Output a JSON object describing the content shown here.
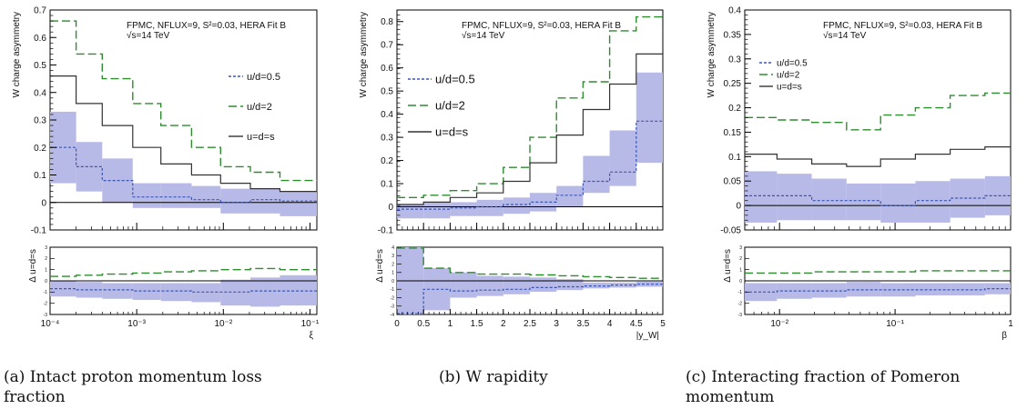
{
  "captions": {
    "a": "(a) Intact proton momentum loss fraction",
    "b": "(b) W rapidity",
    "c": "(c) Interacting fraction of Pomeron momentum"
  },
  "colors": {
    "band": "#b7b9e6",
    "green": "#2e8b2e",
    "blue": "#3a57b6",
    "black": "#333333"
  },
  "chart_data": [
    {
      "type": "line",
      "id": "a",
      "ylabel": "W charge asymmetry",
      "ratio_ylabel": "Δ u=d=s",
      "xlabel": "ξ",
      "xscale": "log",
      "xlim": [
        0.0001,
        0.12
      ],
      "ylim": [
        -0.1,
        0.7
      ],
      "ratio_ylim": [
        -3,
        3
      ],
      "x_ticks": [
        "10⁻⁴",
        "10⁻³",
        "10⁻²",
        "10⁻¹"
      ],
      "y_ticks": [
        "-0.1",
        "0",
        "0.1",
        "0.2",
        "0.3",
        "0.4",
        "0.5",
        "0.6",
        "0.7"
      ],
      "ratio_ticks": [
        "-3",
        "-2",
        "-1",
        "0",
        "1",
        "2",
        "3"
      ],
      "annotation": [
        "FPMC, NFLUX=9, S²=0.03, HERA Fit B",
        "√s=14 TeV"
      ],
      "legend": [
        "u/d=0.5",
        "u/d=2",
        "u=d=s"
      ],
      "legend_position": "right",
      "bin_edges": [
        0.0001,
        0.0002,
        0.0004,
        0.0009,
        0.0019,
        0.0043,
        0.0093,
        0.0205,
        0.045,
        0.12
      ],
      "series": [
        {
          "name": "u/d=0.5",
          "style": "dashed-blue",
          "values": [
            0.2,
            0.13,
            0.08,
            0.02,
            0.02,
            0.01,
            0.0,
            0.01,
            0.005
          ],
          "band_low": [
            0.07,
            0.04,
            0.0,
            -0.02,
            -0.02,
            -0.02,
            -0.04,
            -0.04,
            -0.05
          ],
          "band_high": [
            0.33,
            0.22,
            0.16,
            0.07,
            0.07,
            0.06,
            0.05,
            0.05,
            0.04
          ]
        },
        {
          "name": "u/d=2",
          "style": "dashed-green",
          "values": [
            0.66,
            0.54,
            0.45,
            0.36,
            0.28,
            0.2,
            0.13,
            0.11,
            0.08
          ]
        },
        {
          "name": "u=d=s",
          "style": "solid-black",
          "values": [
            0.46,
            0.36,
            0.28,
            0.2,
            0.14,
            0.1,
            0.07,
            0.05,
            0.04
          ]
        }
      ],
      "ratio_series": [
        {
          "name": "u/d=0.5",
          "values": [
            -0.7,
            -0.8,
            -0.8,
            -0.9,
            -0.9,
            -1.0,
            -1.0,
            -0.9,
            -0.9
          ],
          "band_low": [
            -1.4,
            -1.5,
            -1.6,
            -1.7,
            -1.8,
            -1.9,
            -2.2,
            -2.3,
            -2.2
          ],
          "band_high": [
            0.0,
            -0.1,
            -0.2,
            -0.2,
            -0.2,
            -0.2,
            0.1,
            0.3,
            0.5
          ]
        },
        {
          "name": "u/d=2",
          "values": [
            0.4,
            0.5,
            0.6,
            0.7,
            0.8,
            0.9,
            1.0,
            1.1,
            1.0
          ]
        }
      ]
    },
    {
      "type": "line",
      "id": "b",
      "ylabel": "W charge asymmetry",
      "ratio_ylabel": "Δ u=d=s",
      "xlabel": "|y_W|",
      "xscale": "linear",
      "xlim": [
        0,
        5
      ],
      "ylim": [
        -0.1,
        0.85
      ],
      "ratio_ylim": [
        -4,
        4
      ],
      "x_ticks": [
        "0",
        "0.5",
        "1",
        "1.5",
        "2",
        "2.5",
        "3",
        "3.5",
        "4",
        "4.5",
        "5"
      ],
      "y_ticks": [
        "-0.1",
        "0",
        "0.1",
        "0.2",
        "0.3",
        "0.4",
        "0.5",
        "0.6",
        "0.7",
        "0.8"
      ],
      "ratio_ticks": [
        "-4",
        "-3",
        "-2",
        "-1",
        "0",
        "1",
        "2",
        "3",
        "4"
      ],
      "annotation": [
        "FPMC, NFLUX=9, S²=0.03, HERA Fit B",
        "√s=14 TeV"
      ],
      "legend": [
        "u/d=0.5",
        "u/d=2",
        "u=d=s"
      ],
      "legend_position": "left",
      "bin_edges": [
        0,
        0.5,
        1,
        1.5,
        2,
        2.5,
        3,
        3.5,
        4,
        4.5,
        5
      ],
      "series": [
        {
          "name": "u/d=0.5",
          "style": "dashed-blue",
          "values": [
            -0.01,
            -0.01,
            -0.005,
            0.0,
            0.01,
            0.02,
            0.05,
            0.11,
            0.15,
            0.37
          ],
          "band_low": [
            -0.05,
            -0.05,
            -0.04,
            -0.04,
            -0.03,
            -0.02,
            0.0,
            0.06,
            0.09,
            0.19
          ],
          "band_high": [
            0.01,
            0.02,
            0.02,
            0.03,
            0.04,
            0.06,
            0.09,
            0.22,
            0.33,
            0.58
          ]
        },
        {
          "name": "u/d=2",
          "style": "dashed-green",
          "values": [
            0.04,
            0.05,
            0.07,
            0.1,
            0.17,
            0.3,
            0.47,
            0.54,
            0.76,
            0.82
          ]
        },
        {
          "name": "u=d=s",
          "style": "solid-black",
          "values": [
            0.01,
            0.02,
            0.04,
            0.06,
            0.11,
            0.19,
            0.31,
            0.42,
            0.53,
            0.66
          ]
        }
      ],
      "ratio_series": [
        {
          "name": "u/d=0.5",
          "values": [
            -3.9,
            -1.0,
            -1.2,
            -1.1,
            -1.0,
            -0.8,
            -0.7,
            -0.6,
            -0.5,
            -0.4
          ],
          "band_low": [
            -4.0,
            -3.5,
            -2.0,
            -1.8,
            -1.6,
            -1.3,
            -1.1,
            -0.9,
            -0.8,
            -0.7
          ],
          "band_high": [
            4.0,
            1.5,
            1.0,
            0.6,
            0.5,
            0.4,
            0.2,
            -0.2,
            -0.2,
            -0.1
          ]
        },
        {
          "name": "u/d=2",
          "values": [
            3.9,
            1.5,
            1.0,
            0.8,
            0.8,
            0.7,
            0.6,
            0.5,
            0.4,
            0.3
          ]
        }
      ]
    },
    {
      "type": "line",
      "id": "c",
      "ylabel": "W charge asymmetry",
      "ratio_ylabel": "Δ u=d=s",
      "xlabel": "β",
      "xscale": "log",
      "xlim": [
        0.005,
        1
      ],
      "ylim": [
        -0.05,
        0.4
      ],
      "ratio_ylim": [
        -3,
        3
      ],
      "x_ticks": [
        "10⁻²",
        "10⁻¹",
        "1"
      ],
      "y_ticks": [
        "-0.05",
        "0",
        "0.05",
        "0.1",
        "0.15",
        "0.2",
        "0.25",
        "0.3",
        "0.35",
        "0.4"
      ],
      "ratio_ticks": [
        "-3",
        "-2",
        "-1",
        "0",
        "1",
        "2",
        "3"
      ],
      "annotation": [
        "FPMC, NFLUX=9, S²=0.03, HERA Fit B",
        "√s=14 TeV"
      ],
      "legend": [
        "u/d=0.5",
        "u/d=2",
        "u=d=s"
      ],
      "legend_position": "top-left",
      "bin_edges": [
        0.005,
        0.0095,
        0.019,
        0.038,
        0.075,
        0.15,
        0.3,
        0.6,
        1
      ],
      "series": [
        {
          "name": "u/d=0.5",
          "style": "dashed-blue",
          "values": [
            0.02,
            0.02,
            0.01,
            0.01,
            0.0,
            0.01,
            0.015,
            0.02
          ],
          "band_low": [
            -0.035,
            -0.03,
            -0.03,
            -0.03,
            -0.035,
            -0.035,
            -0.025,
            -0.02
          ],
          "band_high": [
            0.07,
            0.065,
            0.055,
            0.045,
            0.045,
            0.05,
            0.055,
            0.06
          ]
        },
        {
          "name": "u/d=2",
          "style": "dashed-green",
          "values": [
            0.18,
            0.175,
            0.17,
            0.155,
            0.185,
            0.2,
            0.225,
            0.23
          ]
        },
        {
          "name": "u=d=s",
          "style": "solid-black",
          "values": [
            0.105,
            0.095,
            0.085,
            0.08,
            0.095,
            0.105,
            0.115,
            0.12
          ]
        }
      ],
      "ratio_series": [
        {
          "name": "u/d=0.5",
          "values": [
            -1.0,
            -0.9,
            -0.9,
            -0.8,
            -0.8,
            -0.8,
            -0.8,
            -0.7
          ],
          "band_low": [
            -1.8,
            -1.6,
            -1.5,
            -1.4,
            -1.4,
            -1.3,
            -1.3,
            -1.2
          ],
          "band_high": [
            -0.2,
            -0.2,
            -0.2,
            -0.1,
            -0.2,
            -0.2,
            -0.2,
            -0.2
          ]
        },
        {
          "name": "u/d=2",
          "values": [
            0.7,
            0.7,
            0.8,
            0.8,
            0.8,
            0.9,
            0.9,
            0.9
          ]
        }
      ]
    }
  ]
}
